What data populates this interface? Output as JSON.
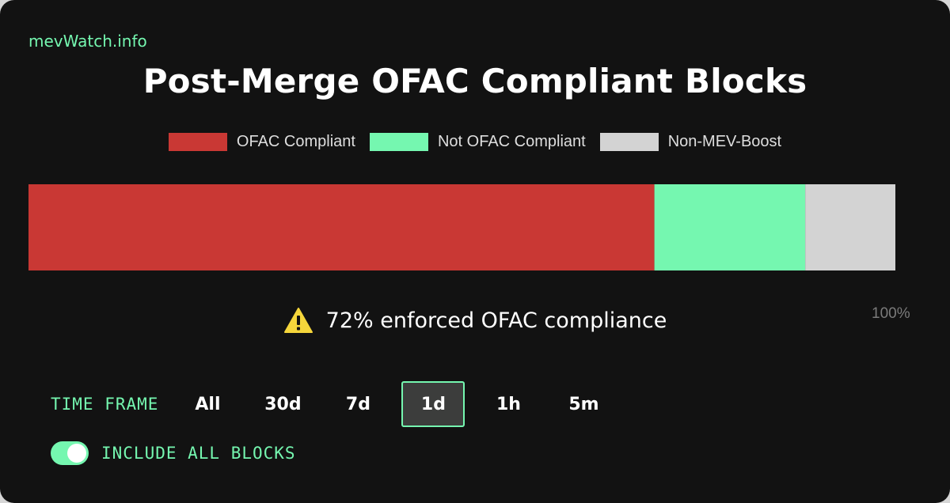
{
  "brand": "mevWatch.info",
  "chart_data": {
    "type": "bar",
    "orientation": "horizontal-stacked",
    "title": "Post-Merge OFAC Compliant Blocks",
    "series": [
      {
        "name": "OFAC Compliant",
        "value": 72.2,
        "color": "#c93834"
      },
      {
        "name": "Not OFAC Compliant",
        "value": 17.4,
        "color": "#75f7b0"
      },
      {
        "name": "Non-MEV-Boost",
        "value": 10.4,
        "color": "#d3d3d3"
      }
    ],
    "xlim": [
      0,
      100
    ],
    "axis_end_label": "100%",
    "legend_position": "top-center",
    "grid": false
  },
  "status": {
    "icon": "warning-icon",
    "text": "72% enforced OFAC compliance"
  },
  "timeframe": {
    "label": "TIME FRAME",
    "options": [
      "All",
      "30d",
      "7d",
      "1d",
      "1h",
      "5m"
    ],
    "selected": "1d"
  },
  "toggle": {
    "label": "INCLUDE ALL BLOCKS",
    "on": true
  }
}
